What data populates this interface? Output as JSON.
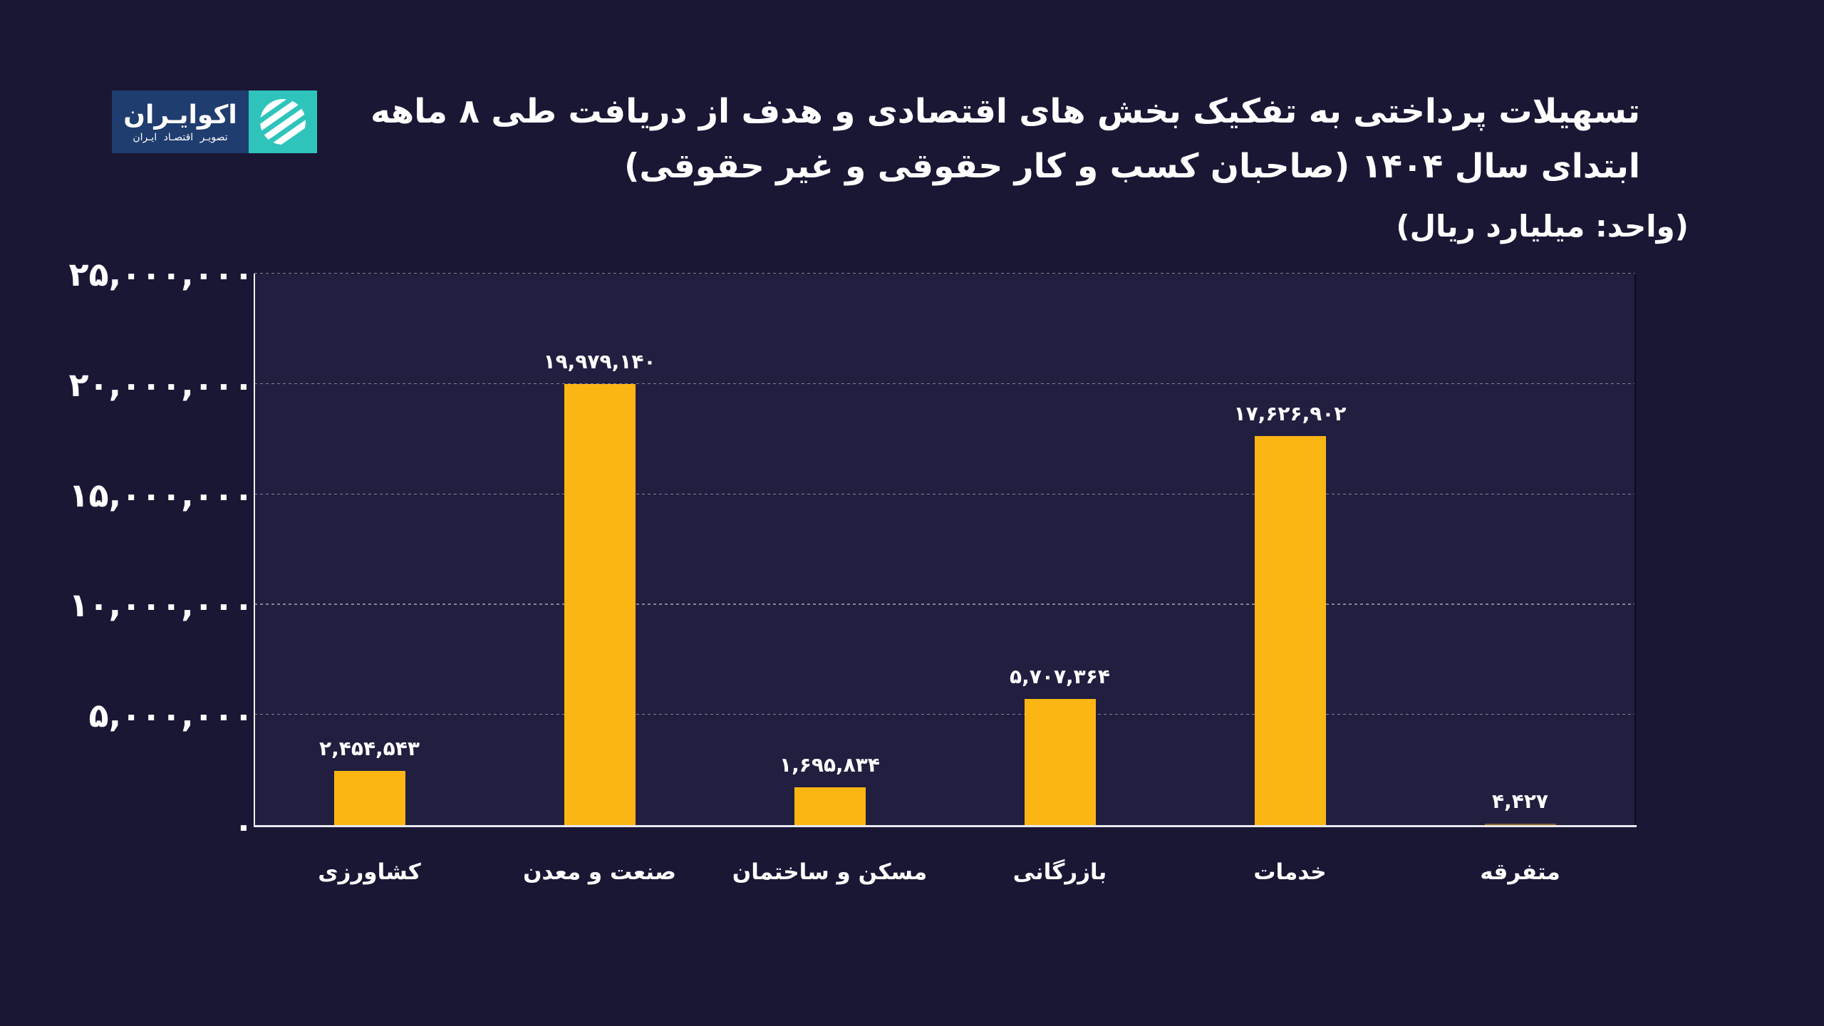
{
  "logo": {
    "name": "اکوایـران",
    "tagline": "تصویـر اقتصـاد ایـران",
    "teal_color": "#2ec4bc",
    "blue_color": "#1f3d6f"
  },
  "title": {
    "line1": "تسهیلات پرداختی به تفکیک بخش های اقتصادی و هدف از دریافت طی ۸ ماهه",
    "line2": "ابتدای سال ۱۴۰۴ (صاحبان کسب و کار حقوقی و غیر حقوقی)"
  },
  "subtitle": "(واحد: میلیارد ریال)",
  "chart_data": {
    "type": "bar",
    "categories": [
      "کشاورزی",
      "صنعت و معدن",
      "مسکن و ساختمان",
      "بازرگانی",
      "خدمات",
      "متفرقه"
    ],
    "values": [
      2454543,
      19979140,
      1695834,
      5707364,
      17626902,
      4427
    ],
    "value_labels": [
      "۲,۴۵۴,۵۴۳",
      "۱۹,۹۷۹,۱۴۰",
      "۱,۶۹۵,۸۳۴",
      "۵,۷۰۷,۳۶۴",
      "۱۷,۶۲۶,۹۰۲",
      "۴,۴۲۷"
    ],
    "y_ticks": [
      0,
      5000000,
      10000000,
      15000000,
      20000000,
      25000000
    ],
    "y_tick_labels": [
      "۰",
      "۵,۰۰۰,۰۰۰",
      "۱۰,۰۰۰,۰۰۰",
      "۱۵,۰۰۰,۰۰۰",
      "۲۰,۰۰۰,۰۰۰",
      "۲۵,۰۰۰,۰۰۰"
    ],
    "ylim": [
      0,
      25000000
    ],
    "xlabel": "",
    "ylabel": "",
    "title": "تسهیلات پرداختی به تفکیک بخش های اقتصادی و هدف از دریافت طی ۸ ماهه ابتدای سال ۱۴۰۴ (صاحبان کسب و کار حقوقی و غیر حقوقی)",
    "unit": "(واحد: میلیارد ریال)",
    "bar_color": "#fcb613",
    "grid": "dashed-horizontal",
    "legend": "none"
  }
}
